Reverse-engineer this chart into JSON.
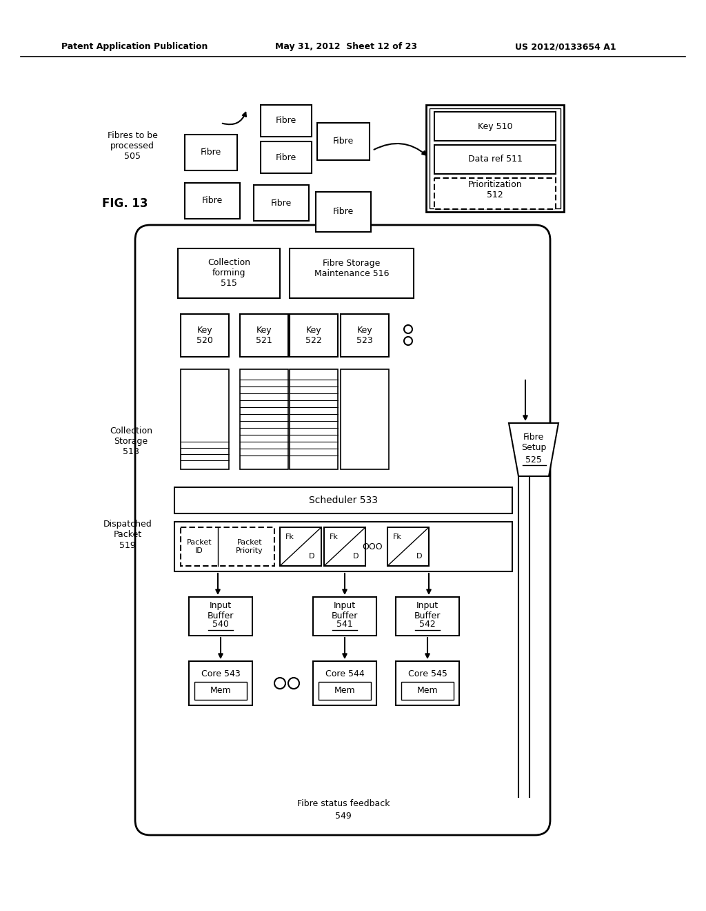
{
  "header_left": "Patent Application Publication",
  "header_mid": "May 31, 2012  Sheet 12 of 23",
  "header_right": "US 2012/0133654 A1",
  "bg": "#ffffff"
}
